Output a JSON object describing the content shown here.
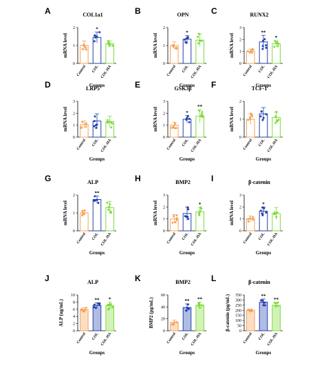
{
  "chart_data": [
    {
      "label": "A",
      "type": "bar",
      "title": "COL1a1",
      "xlabel": "Groups",
      "ylabel": "mRNA level",
      "ylim": [
        0,
        2.0
      ],
      "yticks": [
        "0",
        "1",
        "2"
      ],
      "categories": [
        "Control",
        "COL",
        "COL-HA"
      ],
      "values": [
        1.0,
        1.45,
        1.1
      ],
      "errors": [
        0.25,
        0.3,
        0.15
      ],
      "sig": [
        "",
        "*",
        ""
      ]
    },
    {
      "label": "B",
      "type": "bar",
      "title": "OPN",
      "xlabel": "Groups",
      "ylabel": "mRNA level",
      "ylim": [
        0,
        2.0
      ],
      "yticks": [
        "0",
        "1",
        "2"
      ],
      "categories": [
        "Control",
        "COL",
        "COL-HA"
      ],
      "values": [
        1.0,
        1.35,
        1.3
      ],
      "errors": [
        0.2,
        0.2,
        0.35
      ],
      "sig": [
        "",
        "*",
        ""
      ]
    },
    {
      "label": "C",
      "type": "bar",
      "title": "RUNX2",
      "xlabel": "Groups",
      "ylabel": "mRNA level",
      "ylim": [
        0,
        3.0
      ],
      "yticks": [
        "0",
        "1",
        "2",
        "3"
      ],
      "categories": [
        "Control",
        "COL",
        "COL-HA"
      ],
      "values": [
        1.0,
        1.8,
        1.65
      ],
      "errors": [
        0.2,
        0.55,
        0.25
      ],
      "sig": [
        "",
        "**",
        "*"
      ]
    },
    {
      "label": "D",
      "type": "bar",
      "title": "LRP5",
      "xlabel": "Groups",
      "ylabel": "mRNA level",
      "ylim": [
        0,
        3.0
      ],
      "yticks": [
        "0",
        "1",
        "2",
        "3"
      ],
      "categories": [
        "Control",
        "COL",
        "COL-HA"
      ],
      "values": [
        1.05,
        1.35,
        1.3
      ],
      "errors": [
        0.3,
        0.6,
        0.45
      ],
      "sig": [
        "",
        "",
        ""
      ]
    },
    {
      "label": "E",
      "type": "bar",
      "title": "GSK3β",
      "xlabel": "Groups",
      "ylabel": "mRNA level",
      "ylim": [
        0,
        3.0
      ],
      "yticks": [
        "0",
        "1",
        "2",
        "3"
      ],
      "categories": [
        "Control",
        "COL",
        "COL-HA"
      ],
      "values": [
        1.0,
        1.5,
        1.75
      ],
      "errors": [
        0.25,
        0.3,
        0.55
      ],
      "sig": [
        "",
        "*",
        "**"
      ]
    },
    {
      "label": "F",
      "type": "bar",
      "title": "TCF-1",
      "xlabel": "Groups",
      "ylabel": "mRNA level",
      "ylim": [
        0,
        2.0
      ],
      "yticks": [
        "0",
        "1",
        "2"
      ],
      "categories": [
        "Control",
        "COL",
        "COL-HA"
      ],
      "values": [
        1.0,
        1.3,
        1.1
      ],
      "errors": [
        0.3,
        0.35,
        0.3
      ],
      "sig": [
        "",
        "",
        ""
      ]
    },
    {
      "label": "G",
      "type": "bar",
      "title": "ALP",
      "xlabel": "Groups",
      "ylabel": "mRNA level",
      "ylim": [
        0,
        2.0
      ],
      "yticks": [
        "0",
        "1",
        "2"
      ],
      "categories": [
        "Control",
        "COL",
        "COL-HA"
      ],
      "values": [
        1.0,
        1.75,
        1.3
      ],
      "errors": [
        0.15,
        0.2,
        0.35
      ],
      "sig": [
        "",
        "**",
        ""
      ]
    },
    {
      "label": "H",
      "type": "bar",
      "title": "BMP2",
      "xlabel": "Groups",
      "ylabel": "mRNA level",
      "ylim": [
        0,
        3.0
      ],
      "yticks": [
        "0",
        "1",
        "2",
        "3"
      ],
      "categories": [
        "Control",
        "COL",
        "COL-HA"
      ],
      "values": [
        1.0,
        1.45,
        1.6
      ],
      "errors": [
        0.35,
        0.55,
        0.35
      ],
      "sig": [
        "",
        "",
        "*"
      ]
    },
    {
      "label": "I",
      "type": "bar",
      "title": "β-catenin",
      "xlabel": "Groups",
      "ylabel": "mRNA level",
      "ylim": [
        0,
        3.0
      ],
      "yticks": [
        "0",
        "1",
        "2",
        "3"
      ],
      "categories": [
        "Control",
        "COL",
        "COL-HA"
      ],
      "values": [
        1.0,
        1.65,
        1.45
      ],
      "errors": [
        0.25,
        0.35,
        0.5
      ],
      "sig": [
        "",
        "*",
        ""
      ]
    },
    {
      "label": "J",
      "type": "bar",
      "title": "ALP",
      "xlabel": "Groups",
      "ylabel": "ALP (ug/mL)",
      "ylim": [
        0,
        10
      ],
      "yticks": [
        "0",
        "2",
        "4",
        "6",
        "8",
        "10"
      ],
      "categories": [
        "Control",
        "COL",
        "COL-HA"
      ],
      "values": [
        5.9,
        7.1,
        7.0
      ],
      "errors": [
        0.5,
        0.7,
        1.0
      ],
      "sig": [
        "",
        "**",
        "*"
      ]
    },
    {
      "label": "K",
      "type": "bar",
      "title": "BMP2",
      "xlabel": "Groups",
      "ylabel": "BMP2 (pg/mL)",
      "ylim": [
        0,
        60
      ],
      "yticks": [
        "0",
        "20",
        "40",
        "60"
      ],
      "categories": [
        "Control",
        "COL",
        "COL-HA"
      ],
      "values": [
        14,
        39,
        43
      ],
      "errors": [
        4,
        6,
        5
      ],
      "sig": [
        "",
        "**",
        "**"
      ]
    },
    {
      "label": "L",
      "type": "bar",
      "title": "β-catenin",
      "xlabel": "Groups",
      "ylabel": "β-catenin (pg/mL)",
      "ylim": [
        0,
        350
      ],
      "yticks": [
        "0",
        "50",
        "100",
        "150",
        "200",
        "250",
        "300",
        "350"
      ],
      "categories": [
        "Control",
        "COL",
        "COL-HA"
      ],
      "values": [
        200,
        280,
        250
      ],
      "errors": [
        10,
        30,
        25
      ],
      "sig": [
        "",
        "**",
        "**"
      ]
    }
  ],
  "colors": {
    "control": "#f4a259",
    "col": "#1f3fae",
    "colha": "#7ddb3a"
  }
}
